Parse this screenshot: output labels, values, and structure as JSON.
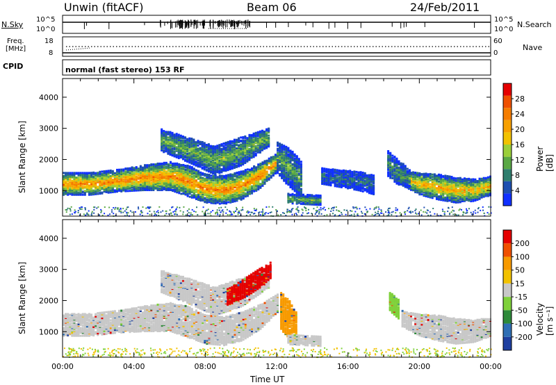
{
  "header": {
    "station": "Unwin (fitACF)",
    "beam": "Beam 06",
    "date": "24/Feb/2011"
  },
  "noise_panel": {
    "left_label": "N.Sky",
    "right_label": "N.Search",
    "left_ticks": [
      "10^5",
      "10^0"
    ],
    "right_ticks": [
      "10^5",
      "10^0"
    ]
  },
  "freq_panel": {
    "left_label_1": "Freq.",
    "left_label_2": "[MHz]",
    "right_label": "Nave",
    "left_ticks": [
      "18",
      "8"
    ],
    "right_ticks": [
      "60",
      "0"
    ]
  },
  "cpid": {
    "label": "CPID",
    "text": "normal (fast stereo) 153 RF"
  },
  "chart_data": [
    {
      "type": "heatmap",
      "name": "power",
      "ylabel": "Slant Range [km]",
      "y_ticks": [
        1000,
        2000,
        3000,
        4000
      ],
      "ylim": [
        180,
        4600
      ],
      "xlim": [
        0,
        24
      ],
      "colorbar_label": "Power [dB]",
      "colorbar_ticks": [
        "4",
        "8",
        "12",
        "16",
        "20",
        "24",
        "28"
      ],
      "colorbar_colors": [
        "#1030ff",
        "#1e4fb0",
        "#2f7e6e",
        "#5aa845",
        "#9bcf3a",
        "#f2c200",
        "#f7a000",
        "#f57d00",
        "#ef5000",
        "#e50000"
      ],
      "bands": [
        {
          "t": [
            0,
            1.5,
            3,
            4.5,
            6,
            7,
            8,
            9,
            10,
            11,
            12
          ],
          "center": [
            1250,
            1250,
            1350,
            1450,
            1500,
            1350,
            1100,
            1050,
            1200,
            1500,
            1950
          ],
          "width": [
            350,
            350,
            350,
            400,
            450,
            500,
            450,
            450,
            450,
            400,
            300
          ],
          "level": 0.75
        },
        {
          "t": [
            5.5,
            7,
            8.5,
            10,
            11.5
          ],
          "center": [
            2650,
            2350,
            2000,
            2300,
            2750
          ],
          "width": [
            350,
            400,
            450,
            450,
            300
          ],
          "level": 0.4
        },
        {
          "t": [
            12,
            12.5,
            13,
            13.4
          ],
          "center": [
            2100,
            1850,
            1600,
            1300
          ],
          "width": [
            500,
            600,
            600,
            600
          ],
          "level": 0.35
        },
        {
          "t": [
            12.6,
            13.5,
            14.5
          ],
          "center": [
            780,
            750,
            720
          ],
          "width": [
            150,
            150,
            150
          ],
          "level": 0.4
        },
        {
          "t": [
            14.5,
            16.5,
            17.5
          ],
          "center": [
            1500,
            1350,
            1200
          ],
          "width": [
            250,
            300,
            300
          ],
          "level": 0.2
        },
        {
          "t": [
            19,
            20,
            21,
            22,
            23,
            24
          ],
          "center": [
            1450,
            1250,
            1150,
            1050,
            1050,
            1200
          ],
          "width": [
            250,
            350,
            400,
            400,
            350,
            300
          ],
          "level": 0.65
        },
        {
          "t": [
            18.2,
            18.8,
            19.5
          ],
          "center": [
            1900,
            1600,
            1400
          ],
          "width": [
            400,
            400,
            300
          ],
          "level": 0.3
        }
      ]
    },
    {
      "type": "heatmap",
      "name": "velocity",
      "ylabel": "Slant Range [km]",
      "xlabel": "Time UT",
      "x_ticks": [
        "00:00",
        "04:00",
        "08:00",
        "12:00",
        "16:00",
        "20:00",
        "00:00"
      ],
      "y_ticks": [
        1000,
        2000,
        3000,
        4000
      ],
      "ylim": [
        180,
        4600
      ],
      "xlim": [
        0,
        24
      ],
      "colorbar_label": "Velocity [m s⁻¹]",
      "colorbar_ticks": [
        "200",
        "100",
        "50",
        "15",
        "-15",
        "-50",
        "-100",
        "-200"
      ],
      "colorbar_colors": [
        "#1e3fa0",
        "#2f6fb5",
        "#2e8a3a",
        "#7fd13b",
        "#c8c8c8",
        "#f2c200",
        "#f79a00",
        "#f05000",
        "#e50000"
      ],
      "bands": [
        {
          "t": [
            0,
            1.5,
            3,
            4.5,
            6,
            7,
            8,
            9,
            10,
            11,
            12
          ],
          "center": [
            1250,
            1250,
            1350,
            1450,
            1500,
            1350,
            1100,
            1050,
            1200,
            1500,
            1950
          ],
          "width": [
            350,
            350,
            350,
            400,
            450,
            500,
            450,
            450,
            450,
            400,
            300
          ],
          "color": "#c8c8c8"
        },
        {
          "t": [
            5.5,
            7,
            8.5,
            10,
            11.5
          ],
          "center": [
            2650,
            2350,
            2000,
            2300,
            2750
          ],
          "width": [
            350,
            400,
            450,
            450,
            300
          ],
          "color": "#c8c8c8"
        },
        {
          "t": [
            9.2,
            10.2,
            11,
            11.7
          ],
          "center": [
            2150,
            2450,
            2750,
            3050
          ],
          "width": [
            250,
            300,
            300,
            250
          ],
          "color": "#e50000"
        },
        {
          "t": [
            12.2,
            12.7,
            13.1
          ],
          "center": [
            1700,
            1400,
            1100
          ],
          "width": [
            600,
            600,
            500
          ],
          "color": "#f79a00"
        },
        {
          "t": [
            12.6,
            13.5,
            14.5
          ],
          "center": [
            780,
            750,
            720
          ],
          "width": [
            150,
            150,
            150
          ],
          "color": "#c8c8c8"
        },
        {
          "t": [
            19,
            20,
            21,
            22,
            23,
            24
          ],
          "center": [
            1450,
            1250,
            1150,
            1050,
            1050,
            1200
          ],
          "width": [
            250,
            350,
            400,
            400,
            350,
            300
          ],
          "color": "#c8c8c8"
        },
        {
          "t": [
            18.3,
            18.8
          ],
          "center": [
            2000,
            1750
          ],
          "width": [
            300,
            300
          ],
          "color": "#7fd13b"
        }
      ]
    }
  ]
}
